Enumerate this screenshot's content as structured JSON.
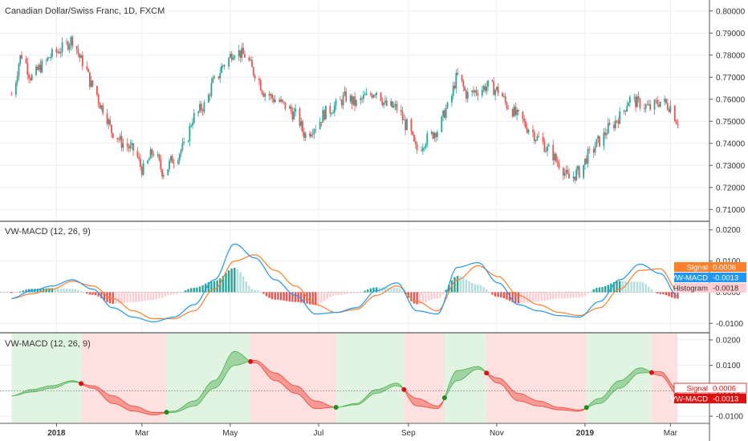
{
  "chart_data": [
    {
      "type": "candlestick",
      "title": "Canadian Dollar/Swiss Franc, 1D, FXCM",
      "ylim": [
        0.705,
        0.805
      ],
      "ytick_labels": [
        "0.80000",
        "0.79000",
        "0.78000",
        "0.77000",
        "0.76000",
        "0.75000",
        "0.74000",
        "0.73000",
        "0.72000",
        "0.71000"
      ],
      "yticks": [
        0.8,
        0.79,
        0.78,
        0.77,
        0.76,
        0.75,
        0.74,
        0.73,
        0.72,
        0.71
      ],
      "close_path": [
        [
          "2017-12-01",
          0.762
        ],
        [
          "2017-12-08",
          0.78
        ],
        [
          "2017-12-15",
          0.77
        ],
        [
          "2017-12-22",
          0.775
        ],
        [
          "2017-12-29",
          0.78
        ],
        [
          "2018-01-05",
          0.783
        ],
        [
          "2018-01-12",
          0.787
        ],
        [
          "2018-01-19",
          0.777
        ],
        [
          "2018-01-26",
          0.766
        ],
        [
          "2018-02-02",
          0.756
        ],
        [
          "2018-02-09",
          0.745
        ],
        [
          "2018-02-16",
          0.74
        ],
        [
          "2018-02-23",
          0.737
        ],
        [
          "2018-03-02",
          0.728
        ],
        [
          "2018-03-09",
          0.736
        ],
        [
          "2018-03-16",
          0.727
        ],
        [
          "2018-03-23",
          0.733
        ],
        [
          "2018-03-30",
          0.738
        ],
        [
          "2018-04-06",
          0.752
        ],
        [
          "2018-04-13",
          0.757
        ],
        [
          "2018-04-20",
          0.768
        ],
        [
          "2018-04-27",
          0.776
        ],
        [
          "2018-05-04",
          0.782
        ],
        [
          "2018-05-11",
          0.78
        ],
        [
          "2018-05-18",
          0.772
        ],
        [
          "2018-05-25",
          0.763
        ],
        [
          "2018-06-01",
          0.76
        ],
        [
          "2018-06-08",
          0.757
        ],
        [
          "2018-06-15",
          0.753
        ],
        [
          "2018-06-22",
          0.744
        ],
        [
          "2018-06-29",
          0.748
        ],
        [
          "2018-07-06",
          0.754
        ],
        [
          "2018-07-13",
          0.757
        ],
        [
          "2018-07-20",
          0.761
        ],
        [
          "2018-07-27",
          0.758
        ],
        [
          "2018-08-03",
          0.761
        ],
        [
          "2018-08-10",
          0.764
        ],
        [
          "2018-08-17",
          0.757
        ],
        [
          "2018-08-24",
          0.756
        ],
        [
          "2018-08-31",
          0.748
        ],
        [
          "2018-09-07",
          0.737
        ],
        [
          "2018-09-14",
          0.742
        ],
        [
          "2018-09-21",
          0.746
        ],
        [
          "2018-09-28",
          0.756
        ],
        [
          "2018-10-05",
          0.77
        ],
        [
          "2018-10-12",
          0.762
        ],
        [
          "2018-10-19",
          0.764
        ],
        [
          "2018-10-26",
          0.766
        ],
        [
          "2018-11-02",
          0.764
        ],
        [
          "2018-11-09",
          0.757
        ],
        [
          "2018-11-16",
          0.752
        ],
        [
          "2018-11-23",
          0.747
        ],
        [
          "2018-11-30",
          0.742
        ],
        [
          "2018-12-07",
          0.737
        ],
        [
          "2018-12-14",
          0.731
        ],
        [
          "2018-12-21",
          0.724
        ],
        [
          "2018-12-28",
          0.727
        ],
        [
          "2019-01-04",
          0.735
        ],
        [
          "2019-01-11",
          0.741
        ],
        [
          "2019-01-18",
          0.747
        ],
        [
          "2019-01-25",
          0.752
        ],
        [
          "2019-02-01",
          0.76
        ],
        [
          "2019-02-08",
          0.758
        ],
        [
          "2019-02-15",
          0.756
        ],
        [
          "2019-02-22",
          0.759
        ],
        [
          "2019-03-01",
          0.757
        ],
        [
          "2019-03-06",
          0.75
        ]
      ]
    },
    {
      "type": "line",
      "title": "VW-MACD (12, 26, 9)",
      "ylim": [
        -0.0125,
        0.0225
      ],
      "ytick_labels": [
        "0.0200",
        "0.0100",
        "0.0000",
        "-0.0100"
      ],
      "yticks": [
        0.02,
        0.01,
        0.0,
        -0.01
      ],
      "series": [
        {
          "name": "VW-MACD",
          "color": "#2196f3",
          "value_label": "-0.0013",
          "points": [
            [
              "2017-12-01",
              -0.002
            ],
            [
              "2017-12-15",
              0.0005
            ],
            [
              "2017-12-29",
              0.002
            ],
            [
              "2018-01-12",
              0.004
            ],
            [
              "2018-01-26",
              0.001
            ],
            [
              "2018-02-09",
              -0.005
            ],
            [
              "2018-02-23",
              -0.008
            ],
            [
              "2018-03-09",
              -0.0095
            ],
            [
              "2018-03-23",
              -0.008
            ],
            [
              "2018-04-06",
              -0.004
            ],
            [
              "2018-04-20",
              0.004
            ],
            [
              "2018-05-04",
              0.0155
            ],
            [
              "2018-05-18",
              0.011
            ],
            [
              "2018-06-01",
              0.004
            ],
            [
              "2018-06-15",
              -0.001
            ],
            [
              "2018-06-29",
              -0.007
            ],
            [
              "2018-07-13",
              -0.0065
            ],
            [
              "2018-07-27",
              -0.005
            ],
            [
              "2018-08-10",
              0.0005
            ],
            [
              "2018-08-24",
              0.003
            ],
            [
              "2018-09-07",
              -0.006
            ],
            [
              "2018-09-21",
              -0.007
            ],
            [
              "2018-10-05",
              0.008
            ],
            [
              "2018-10-19",
              0.0095
            ],
            [
              "2018-11-02",
              0.003
            ],
            [
              "2018-11-16",
              -0.004
            ],
            [
              "2018-11-30",
              -0.006
            ],
            [
              "2018-12-14",
              -0.0075
            ],
            [
              "2018-12-28",
              -0.008
            ],
            [
              "2019-01-11",
              -0.003
            ],
            [
              "2019-01-25",
              0.004
            ],
            [
              "2019-02-08",
              0.009
            ],
            [
              "2019-02-22",
              0.006
            ],
            [
              "2019-03-06",
              -0.0013
            ]
          ]
        },
        {
          "name": "Signal",
          "color": "#ff7f2a",
          "value_label": "0.0006",
          "points": [
            [
              "2017-12-01",
              -0.002
            ],
            [
              "2017-12-15",
              -0.0005
            ],
            [
              "2017-12-29",
              0.001
            ],
            [
              "2018-01-12",
              0.0035
            ],
            [
              "2018-01-26",
              0.002
            ],
            [
              "2018-02-09",
              -0.002
            ],
            [
              "2018-02-23",
              -0.006
            ],
            [
              "2018-03-09",
              -0.0085
            ],
            [
              "2018-03-23",
              -0.0085
            ],
            [
              "2018-04-06",
              -0.006
            ],
            [
              "2018-04-20",
              0.001
            ],
            [
              "2018-05-04",
              0.01
            ],
            [
              "2018-05-18",
              0.012
            ],
            [
              "2018-06-01",
              0.007
            ],
            [
              "2018-06-15",
              0.002
            ],
            [
              "2018-06-29",
              -0.004
            ],
            [
              "2018-07-13",
              -0.0065
            ],
            [
              "2018-07-27",
              -0.0055
            ],
            [
              "2018-08-10",
              -0.001
            ],
            [
              "2018-08-24",
              0.002
            ],
            [
              "2018-09-07",
              -0.003
            ],
            [
              "2018-09-21",
              -0.006
            ],
            [
              "2018-10-05",
              0.004
            ],
            [
              "2018-10-19",
              0.0085
            ],
            [
              "2018-11-02",
              0.005
            ],
            [
              "2018-11-16",
              -0.001
            ],
            [
              "2018-11-30",
              -0.004
            ],
            [
              "2018-12-14",
              -0.0065
            ],
            [
              "2018-12-28",
              -0.0075
            ],
            [
              "2019-01-11",
              -0.005
            ],
            [
              "2019-01-25",
              0.001
            ],
            [
              "2019-02-08",
              0.007
            ],
            [
              "2019-02-22",
              0.0075
            ],
            [
              "2019-03-06",
              0.0006
            ]
          ]
        },
        {
          "name": "Histogram",
          "type": "bar",
          "value_label": "-0.0018",
          "pos_color": "#26a69a",
          "pos_fade_color": "#b2dfdb",
          "neg_color": "#ef5350",
          "neg_fade_color": "#ffcdd2"
        }
      ]
    },
    {
      "type": "area",
      "title": "VW-MACD (12, 26, 9)",
      "ylim": [
        -0.0125,
        0.0225
      ],
      "ytick_labels": [
        "0.0200",
        "0.0100",
        "0.0000",
        "-0.0100"
      ],
      "yticks": [
        0.02,
        0.01,
        0.0,
        -0.01
      ],
      "series": [
        {
          "name": "Signal",
          "value_label": "0.0006"
        },
        {
          "name": "VW-MACD",
          "value_label": "-0.0013"
        }
      ],
      "fill_up_color": "#4caf50",
      "fill_down_color": "#f44336",
      "bg_up_color": "#e1f3e1",
      "bg_down_color": "#fde0e0",
      "cross_up_color": "#1b8e1b",
      "cross_down_color": "#e01010"
    }
  ],
  "time_axis": {
    "ticks": [
      {
        "date": "2018-01-01",
        "label": "2018"
      },
      {
        "date": "2018-03-01",
        "label": "Mar"
      },
      {
        "date": "2018-05-01",
        "label": "May"
      },
      {
        "date": "2018-07-01",
        "label": "Jul"
      },
      {
        "date": "2018-09-01",
        "label": "Sep"
      },
      {
        "date": "2018-11-01",
        "label": "Nov"
      },
      {
        "date": "2019-01-01",
        "label": "2019"
      },
      {
        "date": "2019-03-01",
        "label": "Mar"
      }
    ],
    "start": "2017-11-23",
    "end": "2019-03-08"
  },
  "colors": {
    "up": "#26a69a",
    "down": "#ef5350",
    "grid": "#eeeeee",
    "axis": "#b2b5be",
    "price_up": "#26a69a",
    "price_down": "#ef5350"
  }
}
